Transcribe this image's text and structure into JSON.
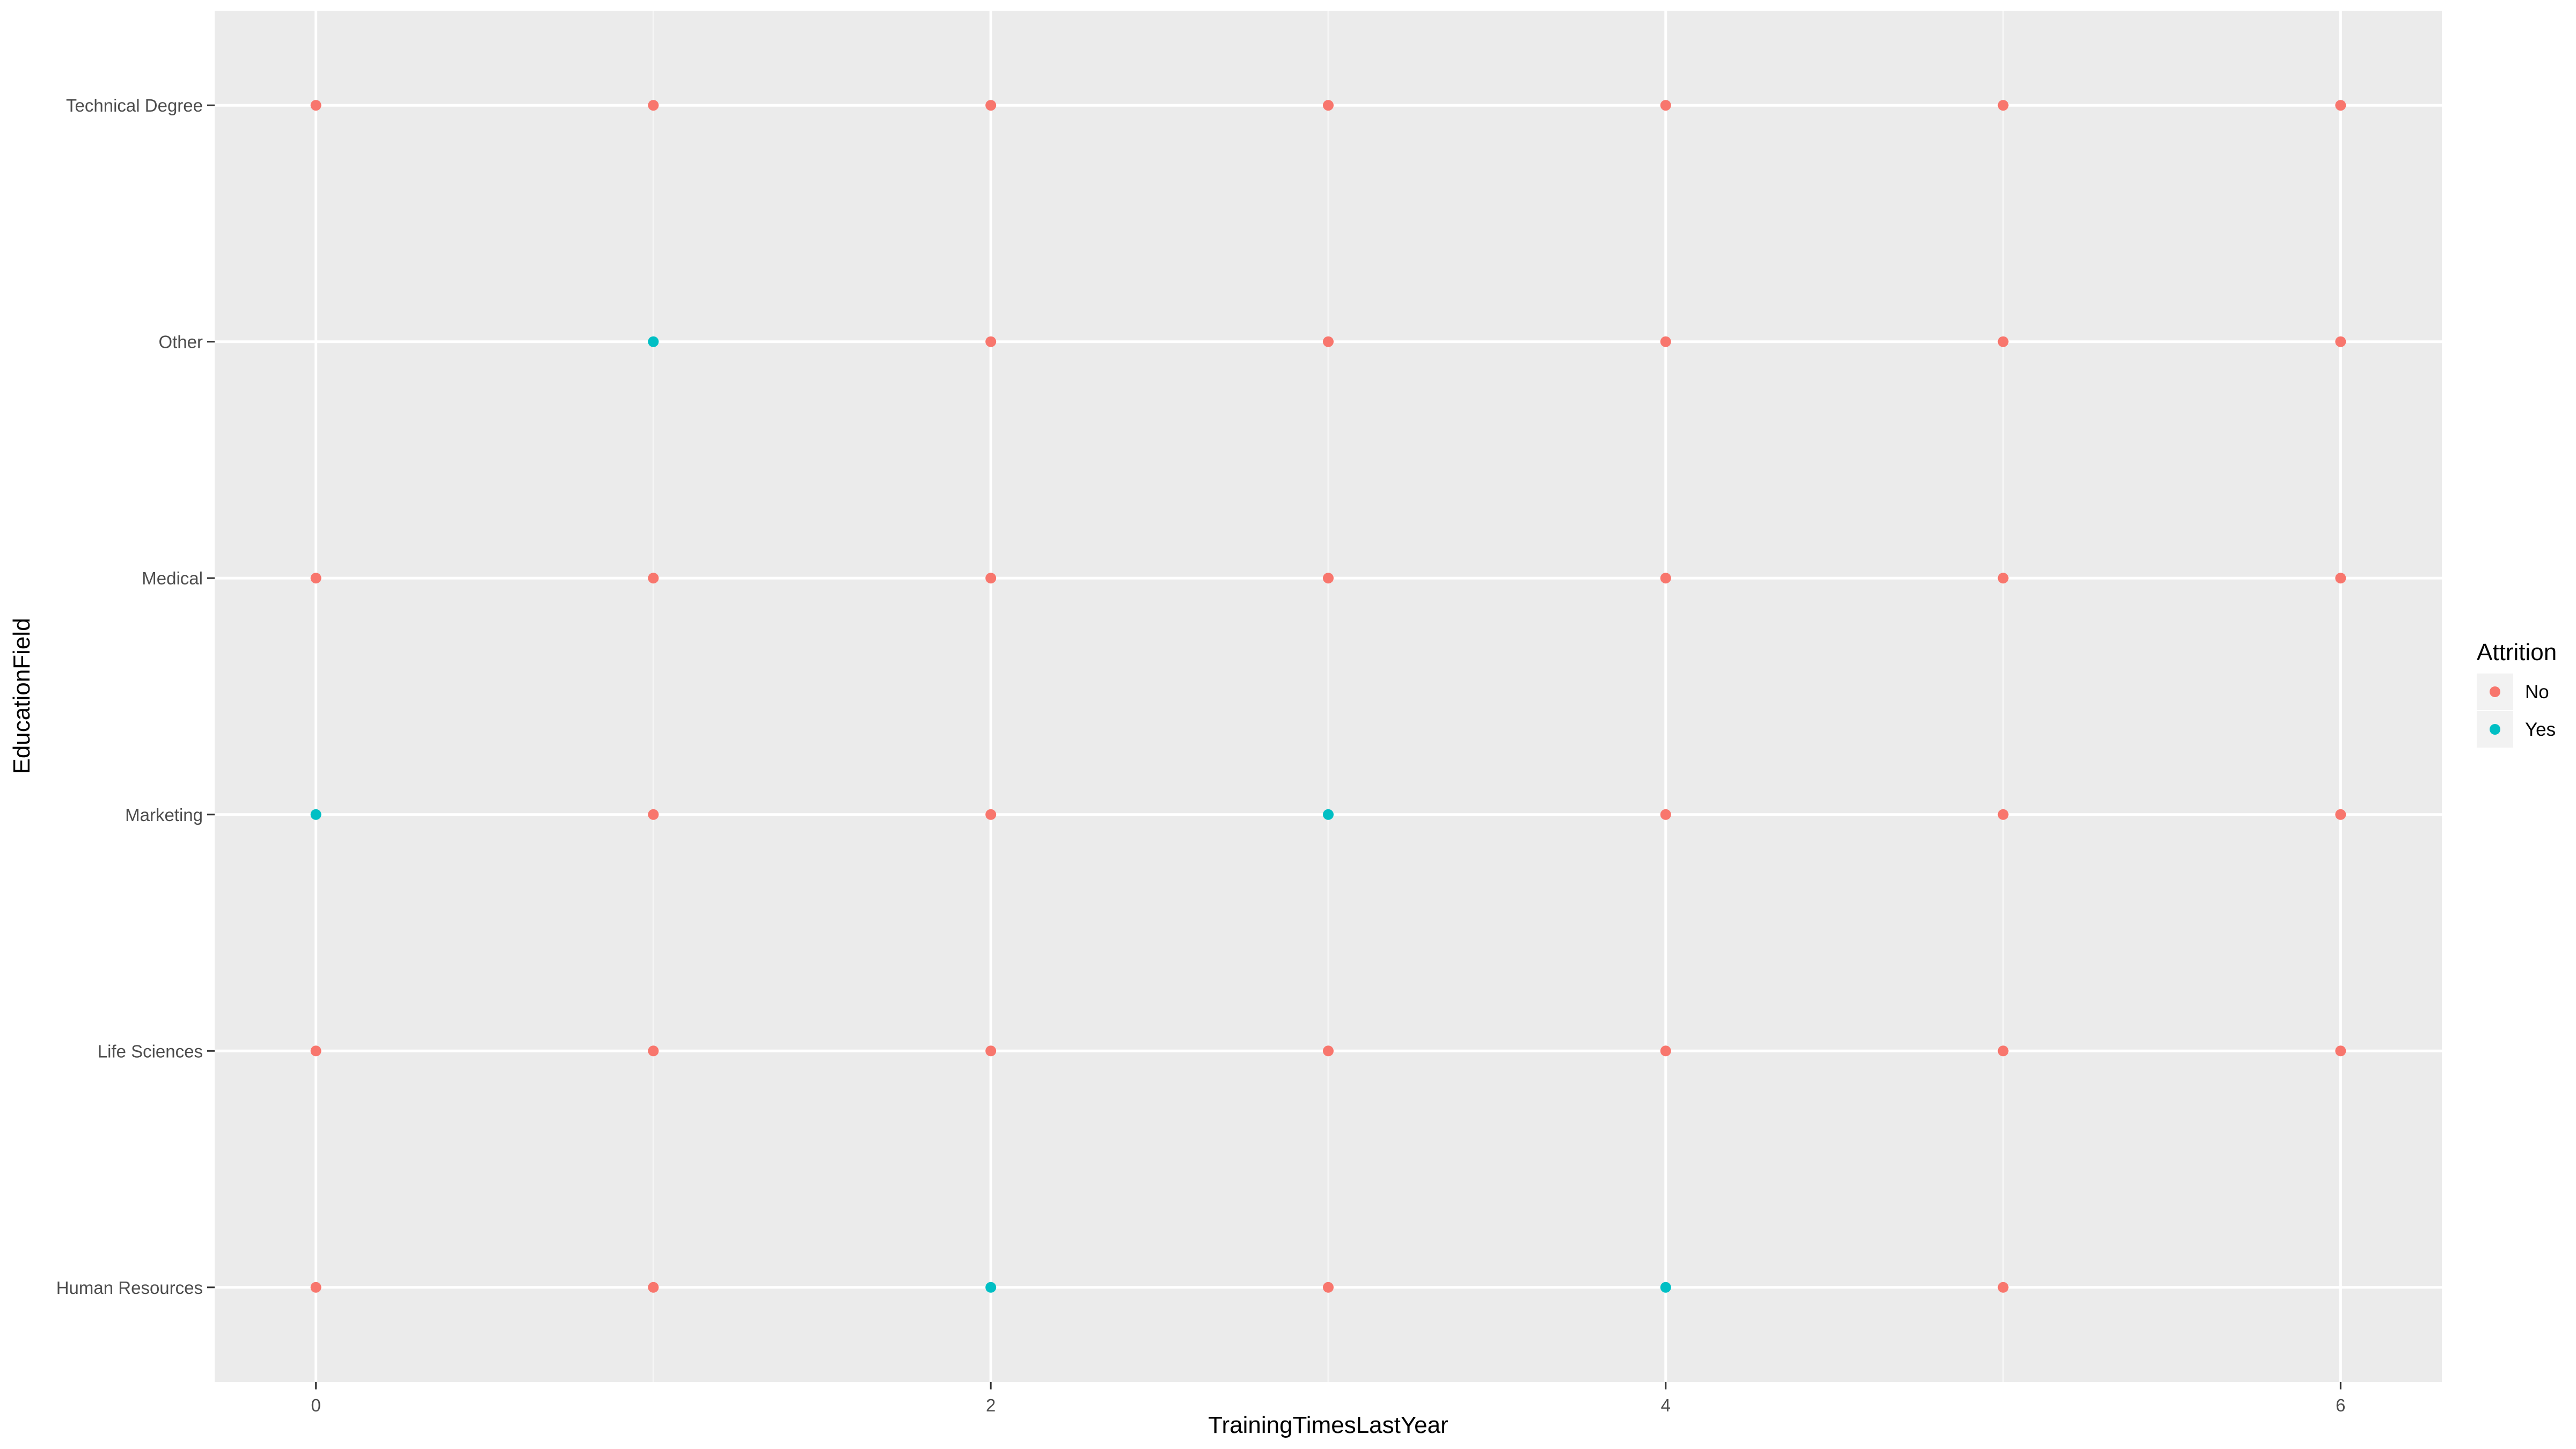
{
  "chart_data": {
    "type": "scatter",
    "xlabel": "TrainingTimesLastYear",
    "ylabel": "EducationField",
    "xlim": [
      -0.3,
      6.3
    ],
    "x_ticks": [
      0,
      2,
      4,
      6
    ],
    "categories": [
      "Human Resources",
      "Life Sciences",
      "Marketing",
      "Medical",
      "Other",
      "Technical Degree"
    ],
    "grid": true,
    "legend": {
      "title": "Attrition",
      "position": "right",
      "entries": [
        {
          "label": "No",
          "color": "#F8766D"
        },
        {
          "label": "Yes",
          "color": "#00BFC4"
        }
      ]
    },
    "series": [
      {
        "name": "No",
        "color": "#F8766D",
        "points": [
          {
            "x": 0,
            "y": "Technical Degree"
          },
          {
            "x": 1,
            "y": "Technical Degree"
          },
          {
            "x": 2,
            "y": "Technical Degree"
          },
          {
            "x": 3,
            "y": "Technical Degree"
          },
          {
            "x": 4,
            "y": "Technical Degree"
          },
          {
            "x": 5,
            "y": "Technical Degree"
          },
          {
            "x": 6,
            "y": "Technical Degree"
          },
          {
            "x": 2,
            "y": "Other"
          },
          {
            "x": 3,
            "y": "Other"
          },
          {
            "x": 4,
            "y": "Other"
          },
          {
            "x": 5,
            "y": "Other"
          },
          {
            "x": 6,
            "y": "Other"
          },
          {
            "x": 0,
            "y": "Medical"
          },
          {
            "x": 1,
            "y": "Medical"
          },
          {
            "x": 2,
            "y": "Medical"
          },
          {
            "x": 3,
            "y": "Medical"
          },
          {
            "x": 4,
            "y": "Medical"
          },
          {
            "x": 5,
            "y": "Medical"
          },
          {
            "x": 6,
            "y": "Medical"
          },
          {
            "x": 1,
            "y": "Marketing"
          },
          {
            "x": 2,
            "y": "Marketing"
          },
          {
            "x": 4,
            "y": "Marketing"
          },
          {
            "x": 5,
            "y": "Marketing"
          },
          {
            "x": 6,
            "y": "Marketing"
          },
          {
            "x": 0,
            "y": "Life Sciences"
          },
          {
            "x": 1,
            "y": "Life Sciences"
          },
          {
            "x": 2,
            "y": "Life Sciences"
          },
          {
            "x": 3,
            "y": "Life Sciences"
          },
          {
            "x": 4,
            "y": "Life Sciences"
          },
          {
            "x": 5,
            "y": "Life Sciences"
          },
          {
            "x": 6,
            "y": "Life Sciences"
          },
          {
            "x": 0,
            "y": "Human Resources"
          },
          {
            "x": 1,
            "y": "Human Resources"
          },
          {
            "x": 3,
            "y": "Human Resources"
          },
          {
            "x": 5,
            "y": "Human Resources"
          }
        ]
      },
      {
        "name": "Yes",
        "color": "#00BFC4",
        "points": [
          {
            "x": 1,
            "y": "Other"
          },
          {
            "x": 0,
            "y": "Marketing"
          },
          {
            "x": 3,
            "y": "Marketing"
          },
          {
            "x": 2,
            "y": "Human Resources"
          },
          {
            "x": 4,
            "y": "Human Resources"
          }
        ]
      }
    ]
  }
}
